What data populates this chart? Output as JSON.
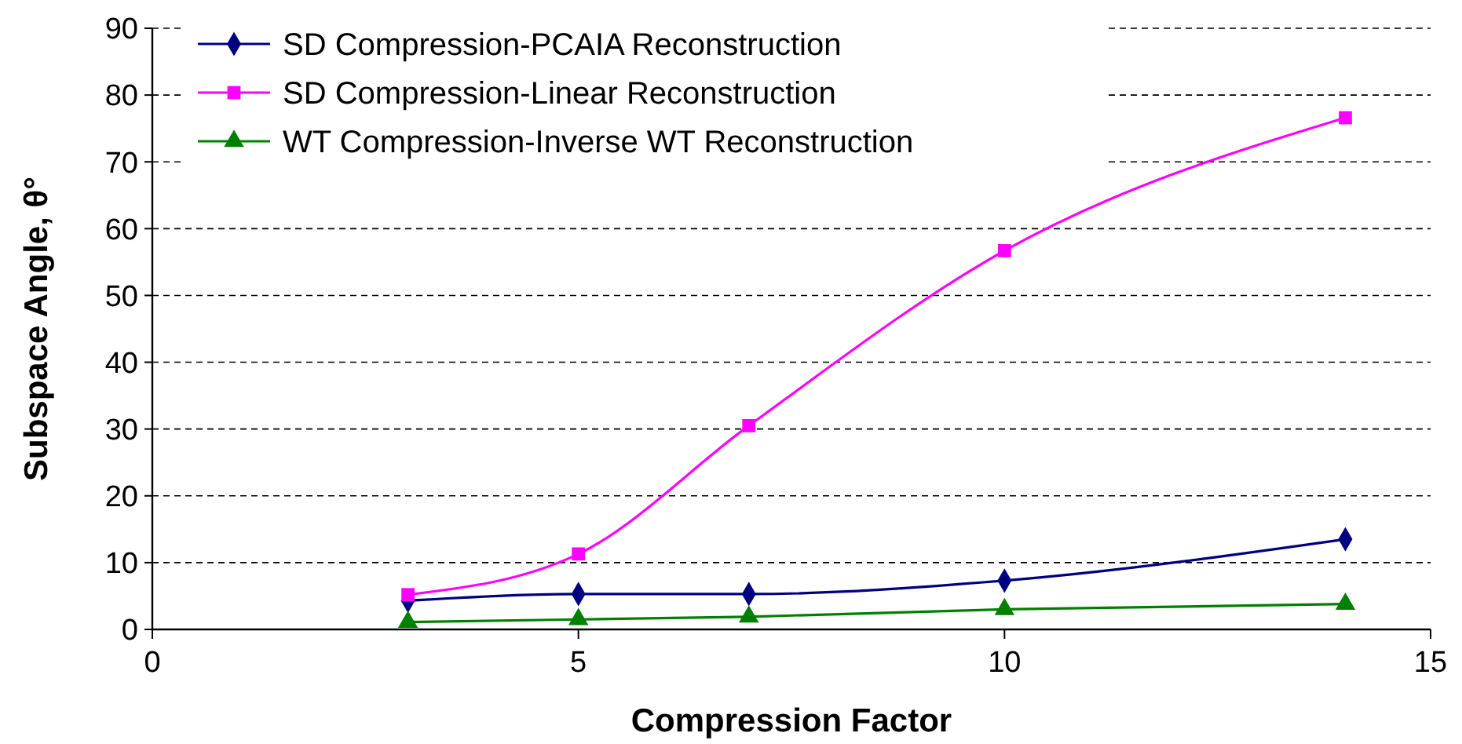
{
  "chart_data": {
    "type": "line",
    "xlabel": "Compression Factor",
    "ylabel": "Subspace Angle, θ°",
    "x": [
      3,
      5,
      7,
      10,
      14
    ],
    "xlim": [
      0,
      15
    ],
    "xticks": [
      0,
      5,
      10,
      15
    ],
    "ylim": [
      0,
      90
    ],
    "yticks": [
      0,
      10,
      20,
      30,
      40,
      50,
      60,
      70,
      80,
      90
    ],
    "grid": "y",
    "legend": "top left",
    "series": [
      {
        "name": "SD Compression-PCAIA Reconstruction",
        "color": "#000080",
        "marker": "diamond",
        "values": [
          4.3,
          5.3,
          5.3,
          7.3,
          13.5
        ]
      },
      {
        "name": "SD Compression-Linear Reconstruction",
        "color": "#ff00ff",
        "marker": "square",
        "values": [
          5.2,
          11.3,
          30.5,
          56.7,
          76.6
        ]
      },
      {
        "name": "WT Compression-Inverse WT Reconstruction",
        "color": "#008000",
        "marker": "triangle",
        "values": [
          1.1,
          1.5,
          1.9,
          3.0,
          3.8
        ]
      }
    ]
  }
}
